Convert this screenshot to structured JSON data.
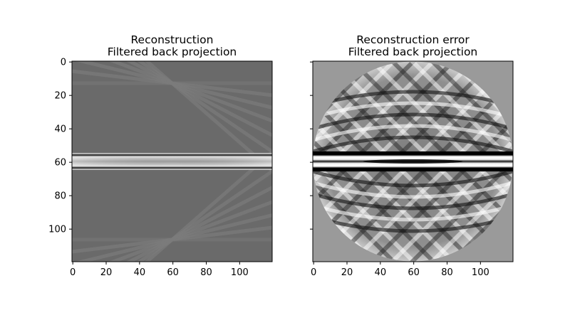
{
  "chart_data": [
    {
      "type": "heatmap",
      "title_line1": "Reconstruction",
      "title_line2": "Filtered back projection",
      "xlim": [
        0,
        120
      ],
      "ylim": [
        120,
        0
      ],
      "x_ticks": [
        "0",
        "20",
        "40",
        "60",
        "80",
        "100"
      ],
      "y_ticks": [
        "0",
        "20",
        "40",
        "60",
        "80",
        "100"
      ],
      "colormap": "gray",
      "background_color": "#6a6a6a",
      "band_rows": [
        55,
        65
      ],
      "band_color": "#b8b8b8",
      "grid": false,
      "legend": "none"
    },
    {
      "type": "heatmap",
      "title_line1": "Reconstruction error",
      "title_line2": "Filtered back projection",
      "xlim": [
        0,
        120
      ],
      "ylim": [
        120,
        0
      ],
      "x_ticks": [
        "0",
        "20",
        "40",
        "60",
        "80",
        "100"
      ],
      "y_ticks": [
        "",
        "",
        "",
        "",
        "",
        ""
      ],
      "colormap": "gray",
      "background_color": "#9a9a9a",
      "disk_center": [
        60,
        60
      ],
      "disk_radius": 60,
      "band_rows": [
        54,
        66
      ],
      "grid": false,
      "legend": "none"
    }
  ]
}
